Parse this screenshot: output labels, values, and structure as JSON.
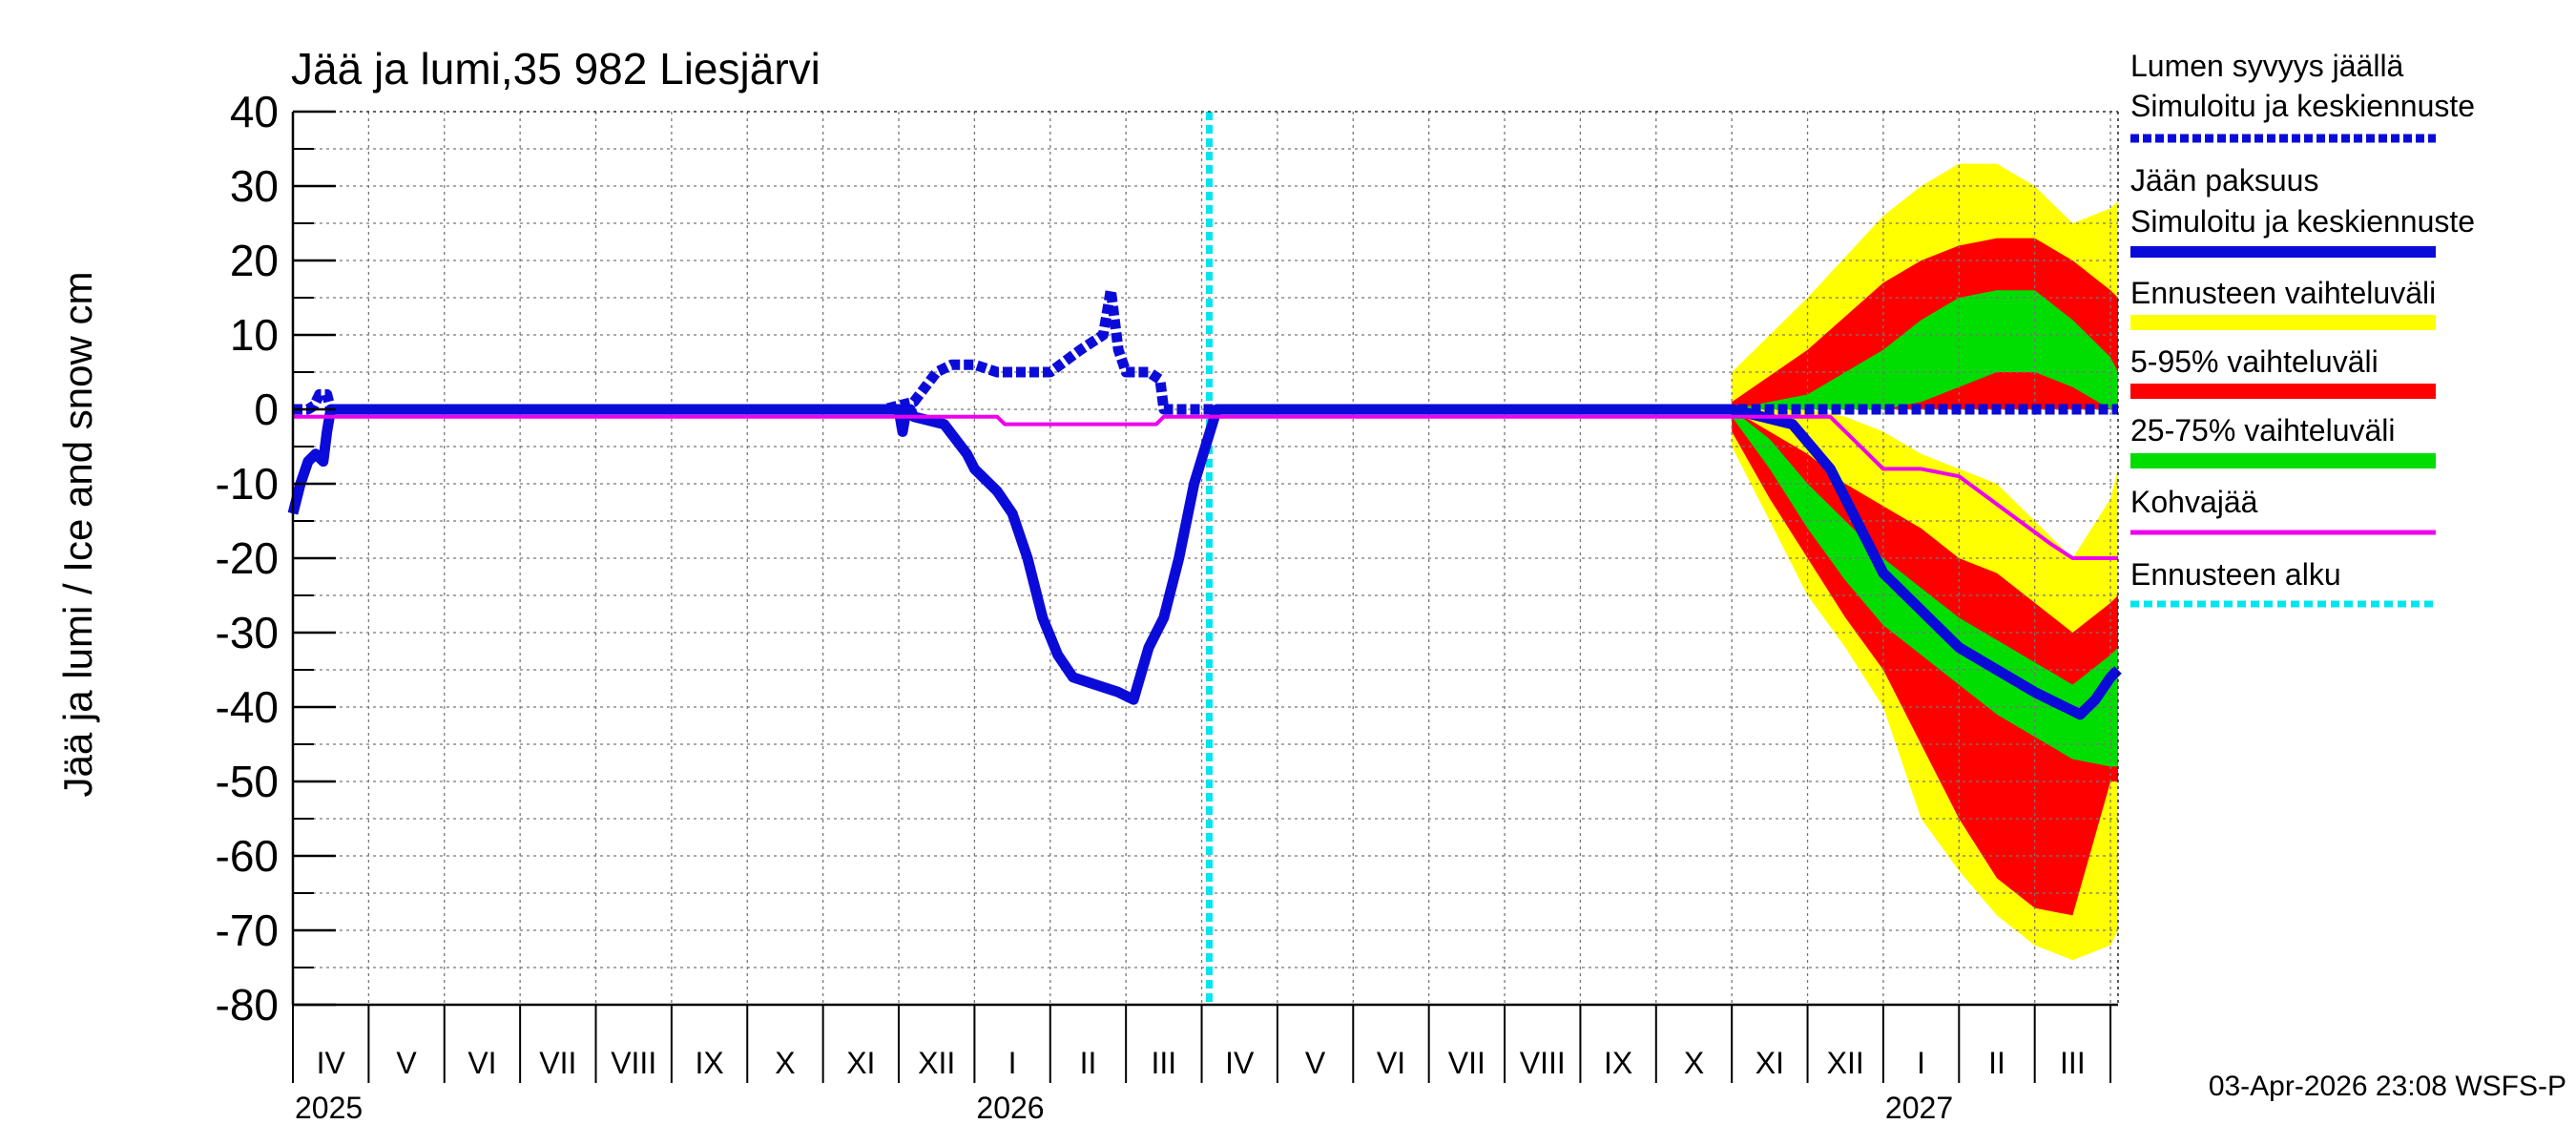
{
  "chart_data": {
    "type": "area",
    "title": "Jää ja lumi,35 982 Liesjärvi",
    "ylabel": "Jää ja lumi / Ice and snow    cm",
    "ylim": [
      -80,
      40
    ],
    "yticks": [
      "40",
      "30",
      "20",
      "10",
      "0",
      "-10",
      "-20",
      "-30",
      "-40",
      "-50",
      "-60",
      "-70",
      "-80"
    ],
    "x_unit": "months since 2025-04-01",
    "xlim": [
      0,
      24.1
    ],
    "forecast_start": 12.1,
    "month_labels": [
      "IV",
      "V",
      "VI",
      "VII",
      "VIII",
      "IX",
      "X",
      "XI",
      "XII",
      "I",
      "II",
      "III",
      "IV",
      "V",
      "VI",
      "VII",
      "VIII",
      "IX",
      "X",
      "XI",
      "XII",
      "I",
      "II",
      "III"
    ],
    "year_labels": [
      {
        "label": "2025",
        "x": 0
      },
      {
        "label": "2026",
        "x": 9
      },
      {
        "label": "2027",
        "x": 21
      }
    ],
    "footer": "03-Apr-2026 23:08 WSFS-P",
    "legend": [
      {
        "label": "Lumen syvyys jäällä",
        "sub": "Simuloitu ja keskiennuste",
        "color": "#0b0bd9",
        "style": "dashed"
      },
      {
        "label": "Jään paksuus",
        "sub": "Simuloitu ja keskiennuste",
        "color": "#0b0bd9",
        "style": "solid"
      },
      {
        "label": "Ennusteen vaihteluväli",
        "color": "#ffff00",
        "style": "band"
      },
      {
        "label": "5-95% vaihteluväli",
        "color": "#ff0000",
        "style": "band"
      },
      {
        "label": "25-75% vaihteluväli",
        "color": "#00dd00",
        "style": "band"
      },
      {
        "label": "Kohvajää",
        "color": "#ee00ee",
        "style": "line"
      },
      {
        "label": "Ennusteen alku",
        "color": "#00e5ee",
        "style": "dotted"
      }
    ],
    "series": [
      {
        "name": "Ennusteen vaihteluväli (lumi)",
        "color": "#ffff00",
        "x": [
          19.0,
          20.0,
          21.0,
          21.5,
          22.0,
          22.5,
          23.0,
          23.5,
          24.0,
          24.1
        ],
        "upper": [
          5,
          15,
          26,
          30,
          33,
          33,
          30,
          25,
          27,
          28
        ],
        "lower": [
          0,
          0,
          0,
          0,
          0,
          0,
          0,
          0,
          0,
          0
        ]
      },
      {
        "name": "5-95% (lumi)",
        "color": "#ff0000",
        "x": [
          19.0,
          20.0,
          21.0,
          21.5,
          22.0,
          22.5,
          23.0,
          23.5,
          24.0,
          24.1
        ],
        "upper": [
          1,
          8,
          17,
          20,
          22,
          23,
          23,
          20,
          16,
          15
        ],
        "lower": [
          0,
          0,
          0,
          0,
          0,
          0,
          0,
          0,
          0,
          0
        ]
      },
      {
        "name": "25-75% (lumi)",
        "color": "#00dd00",
        "x": [
          19.0,
          20.0,
          21.0,
          21.5,
          22.0,
          22.5,
          23.0,
          23.5,
          24.0,
          24.1
        ],
        "upper": [
          0,
          2,
          8,
          12,
          15,
          16,
          16,
          12,
          7,
          5
        ],
        "lower": [
          0,
          0,
          0,
          1,
          3,
          5,
          5,
          3,
          0,
          0
        ]
      },
      {
        "name": "Ennusteen vaihteluväli (jää)",
        "color": "#ffff00",
        "x": [
          19.0,
          19.5,
          20.0,
          20.5,
          21.0,
          21.5,
          22.0,
          22.5,
          23.0,
          23.5,
          24.0,
          24.1
        ],
        "upper": [
          0,
          0,
          0,
          -1,
          -3,
          -6,
          -8,
          -10,
          -15,
          -20,
          -12,
          -8
        ],
        "lower": [
          -5,
          -15,
          -25,
          -32,
          -40,
          -55,
          -62,
          -68,
          -72,
          -74,
          -72,
          -70
        ]
      },
      {
        "name": "5-95% (jää)",
        "color": "#ff0000",
        "x": [
          19.0,
          19.5,
          20.0,
          20.5,
          21.0,
          21.5,
          22.0,
          22.5,
          23.0,
          23.5,
          24.0,
          24.1
        ],
        "upper": [
          0,
          -3,
          -6,
          -10,
          -13,
          -16,
          -20,
          -22,
          -26,
          -30,
          -26,
          -25
        ],
        "lower": [
          -3,
          -12,
          -20,
          -28,
          -35,
          -45,
          -55,
          -63,
          -67,
          -68,
          -50,
          -50
        ]
      },
      {
        "name": "25-75% (jää)",
        "color": "#00dd00",
        "x": [
          19.0,
          19.5,
          20.0,
          20.5,
          21.0,
          21.5,
          22.0,
          22.5,
          23.0,
          23.5,
          24.0,
          24.1
        ],
        "upper": [
          0,
          -4,
          -10,
          -15,
          -20,
          -24,
          -28,
          -31,
          -34,
          -37,
          -33,
          -32
        ],
        "lower": [
          -1,
          -8,
          -16,
          -23,
          -29,
          -33,
          -37,
          -41,
          -44,
          -47,
          -48,
          -48
        ]
      },
      {
        "name": "Lumen syvyys jäällä",
        "color": "#0b0bd9",
        "style": "dashed",
        "x": [
          0.0,
          0.2,
          0.28,
          0.35,
          0.45,
          0.5,
          0.52,
          0.55,
          7.8,
          8.2,
          8.5,
          8.7,
          9.0,
          9.3,
          9.6,
          10.0,
          10.4,
          10.7,
          10.8,
          10.9,
          11.0,
          11.3,
          11.45,
          11.5,
          24.1
        ],
        "values": [
          0,
          0,
          0.5,
          2,
          2,
          0,
          0,
          0,
          0,
          1,
          5,
          6,
          6,
          5,
          5,
          5,
          8,
          10,
          16,
          8,
          5,
          5,
          4,
          0,
          0
        ]
      },
      {
        "name": "Jään paksuus",
        "color": "#0b0bd9",
        "style": "solid",
        "x": [
          0.0,
          0.1,
          0.2,
          0.3,
          0.4,
          0.45,
          0.5,
          0.55,
          8.0,
          8.05,
          8.1,
          8.15,
          8.2,
          8.6,
          8.9,
          9.0,
          9.3,
          9.5,
          9.7,
          9.9,
          10.1,
          10.3,
          10.6,
          10.9,
          11.1,
          11.3,
          11.5,
          11.7,
          11.9,
          12.05,
          12.2,
          12.3,
          12.4,
          12.5,
          19.0,
          19.8,
          20.3,
          20.7,
          21.0,
          21.5,
          22.0,
          22.5,
          23.0,
          23.4,
          23.6,
          23.8,
          24.0,
          24.1
        ],
        "values": [
          -14,
          -10,
          -7,
          -6,
          -7,
          -3,
          0,
          0,
          0,
          -3,
          0,
          0,
          -1,
          -2,
          -6,
          -8,
          -11,
          -14,
          -20,
          -28,
          -33,
          -36,
          -37,
          -38,
          -39,
          -32,
          -28,
          -20,
          -10,
          -5,
          0,
          0,
          0,
          0,
          0,
          -2,
          -8,
          -16,
          -22,
          -27,
          -32,
          -35,
          -38,
          -40,
          -41,
          -39,
          -36,
          -35
        ]
      },
      {
        "name": "Kohvajää",
        "color": "#ee00ee",
        "style": "line",
        "x": [
          0.0,
          9.3,
          9.4,
          11.4,
          11.5,
          19.0,
          20.3,
          20.7,
          21.0,
          21.5,
          22.0,
          22.4,
          22.8,
          23.2,
          23.5,
          24.1
        ],
        "values": [
          -1,
          -1,
          -2,
          -2,
          -1,
          -1,
          -1,
          -5,
          -8,
          -8,
          -9,
          -12,
          -15,
          -18,
          -20,
          -20
        ]
      }
    ]
  }
}
